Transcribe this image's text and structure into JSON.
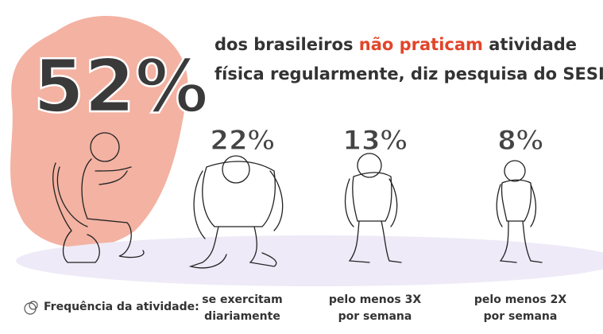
{
  "headline": {
    "number": "52%",
    "text_before": "dos brasileiros ",
    "highlight": "não praticam",
    "text_after_line1": " atividade",
    "text_line2": "física regularmente, diz pesquisa do SESI"
  },
  "groups": [
    {
      "percent": "22%",
      "label_lines": [
        "se exercitam",
        "diariamente"
      ]
    },
    {
      "percent": "13%",
      "label_lines": [
        "pelo menos 3X",
        "por semana"
      ]
    },
    {
      "percent": "8%",
      "label_lines": [
        "pelo menos 2X",
        "por semana"
      ]
    }
  ],
  "legend": "Frequência da atividade:"
}
